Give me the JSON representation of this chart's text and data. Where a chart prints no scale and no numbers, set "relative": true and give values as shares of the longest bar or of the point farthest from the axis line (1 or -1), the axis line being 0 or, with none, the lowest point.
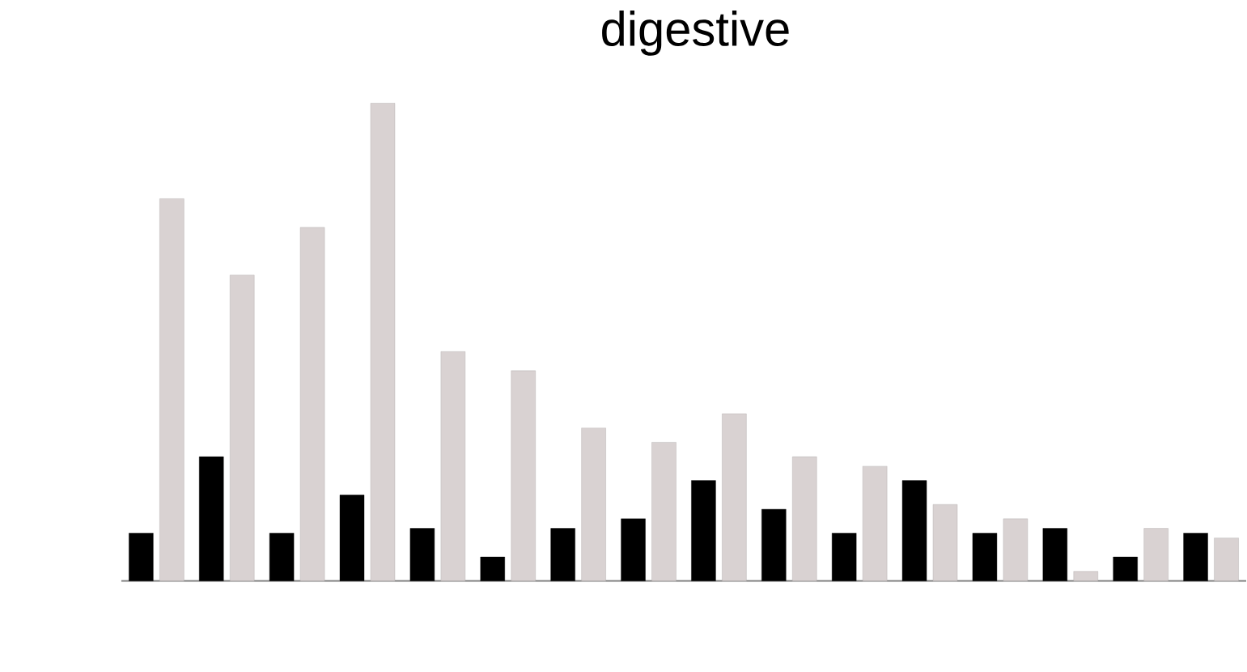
{
  "chart_data": {
    "type": "bar",
    "title": "digestive",
    "relative": true,
    "categories": [
      null,
      null,
      null,
      null,
      null,
      null,
      null,
      null,
      null,
      null,
      null,
      null,
      null,
      null,
      null,
      null
    ],
    "series": [
      {
        "color": "#000000",
        "values": [
          0.1,
          0.26,
          0.1,
          0.18,
          0.11,
          0.05,
          0.11,
          0.13,
          0.21,
          0.15,
          0.1,
          0.21,
          0.1,
          0.11,
          0.05,
          0.1
        ]
      },
      {
        "color": "#d9d2d2",
        "values": [
          0.8,
          0.64,
          0.74,
          1.0,
          0.48,
          0.44,
          0.32,
          0.29,
          0.35,
          0.26,
          0.24,
          0.16,
          0.13,
          0.02,
          0.11,
          0.09
        ]
      }
    ]
  }
}
